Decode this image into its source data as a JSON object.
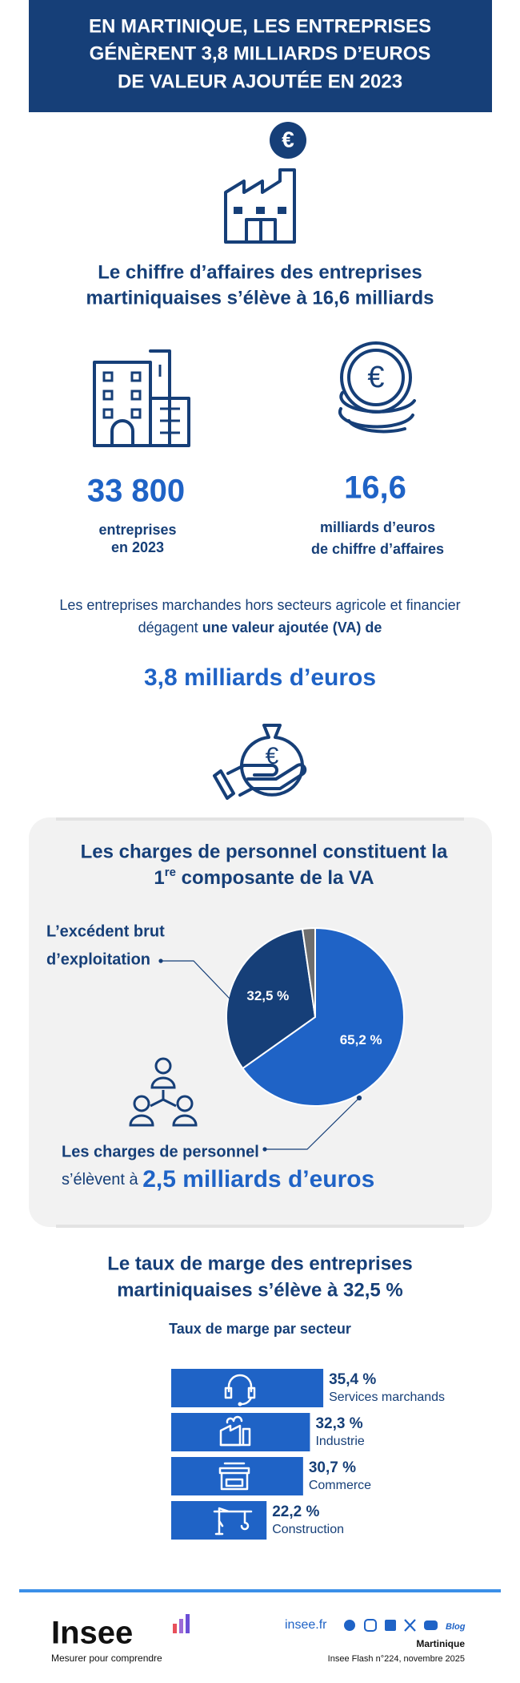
{
  "header": {
    "title_lines": [
      "EN MARTINIQUE, LES ENTREPRISES",
      "GÉNÈRENT 3,8 MILLIARDS D’EUROS",
      "DE VALEUR AJOUTÉE EN 2023"
    ]
  },
  "turnover": {
    "heading_lines": [
      "Le chiffre d’affaires des entreprises",
      "martiniquaises s’élève à 16,6 milliards"
    ],
    "stats": [
      {
        "value": "33 800",
        "label_lines": [
          "entreprises",
          "en 2023"
        ]
      },
      {
        "value": "16,6",
        "label_lines": [
          "milliards d’euros",
          "de chiffre d’affaires"
        ]
      }
    ]
  },
  "value_added": {
    "text_line1": "Les entreprises marchandes hors secteurs agricole et financier",
    "text_line2": "dégagent",
    "text_strong": "une valeur ajoutée (VA) de",
    "amount": "3,8 milliards d’euros"
  },
  "personnel": {
    "title_line1": "Les charges de personnel constituent la",
    "title_ordinal": "1",
    "title_ordinal_sup": "re",
    "title_line2_rest": "composante de la VA",
    "ebe_label_lines": [
      "L’excédent brut",
      "d’exploitation"
    ],
    "charges_label": "Les charges de personnel",
    "charges_verb": "s’élèvent à",
    "charges_amount": "2,5 milliards d’euros"
  },
  "margin": {
    "heading_lines": [
      "Le taux de marge des entreprises",
      "martiniquaises s’élève à 32,5 %"
    ]
  },
  "chart_data": [
    {
      "type": "pie",
      "values": [
        65.2,
        32.5,
        2.3
      ],
      "value_labels": [
        "65,2 %",
        "32,5 %",
        null
      ],
      "colors": [
        "#1f63c6",
        "#163f78",
        "#6e6e6e"
      ]
    },
    {
      "type": "bar",
      "title": "Taux de marge par secteur",
      "categories": [
        "Services marchands",
        "Industrie",
        "Commerce",
        "Construction"
      ],
      "values": [
        35.4,
        32.3,
        30.7,
        22.2
      ],
      "value_labels": [
        "35,4 %",
        "32,3 %",
        "30,7 %",
        "22,2 %"
      ],
      "color": "#1f63c6"
    }
  ],
  "footer": {
    "logo": "Insee",
    "tagline": "Mesurer pour comprendre",
    "site": "insee.fr",
    "blog": "Blog",
    "region": "Martinique",
    "publication": "Insee Flash n°224, novembre 2025"
  }
}
